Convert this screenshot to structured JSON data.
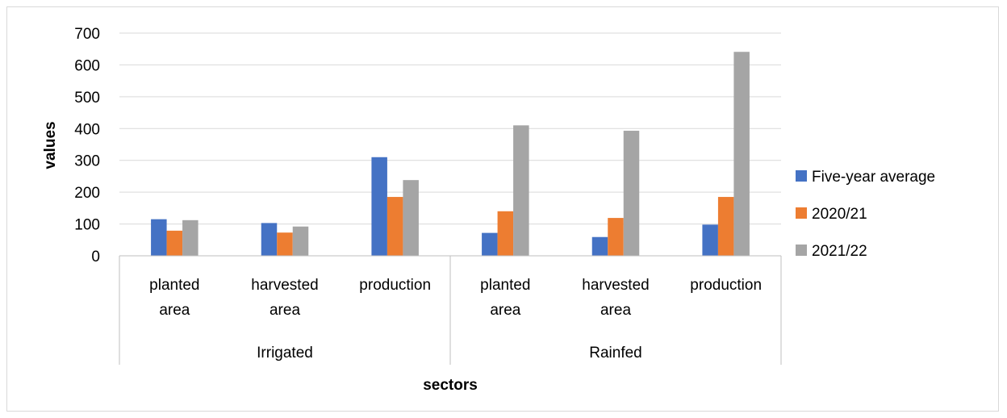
{
  "chart_data": {
    "type": "bar",
    "xlabel": "sectors",
    "ylabel": "values",
    "ylim": [
      0,
      700
    ],
    "yticks": [
      0,
      100,
      200,
      300,
      400,
      500,
      600,
      700
    ],
    "grid": true,
    "legend_position": "right",
    "groups": [
      {
        "label": "Irrigated",
        "categories": [
          [
            "planted",
            "area"
          ],
          [
            "harvested",
            "area"
          ],
          [
            "production"
          ]
        ]
      },
      {
        "label": "Rainfed",
        "categories": [
          [
            "planted",
            "area"
          ],
          [
            "harvested",
            "area"
          ],
          [
            "production"
          ]
        ]
      }
    ],
    "series": [
      {
        "name": "Five-year average",
        "color": "#4472C4",
        "values": [
          115,
          103,
          310,
          72,
          59,
          98
        ]
      },
      {
        "name": "2020/21",
        "color": "#ED7D31",
        "values": [
          79,
          73,
          185,
          140,
          119,
          185
        ]
      },
      {
        "name": "2021/22",
        "color": "#A5A5A5",
        "values": [
          112,
          92,
          238,
          410,
          393,
          641
        ]
      }
    ]
  }
}
